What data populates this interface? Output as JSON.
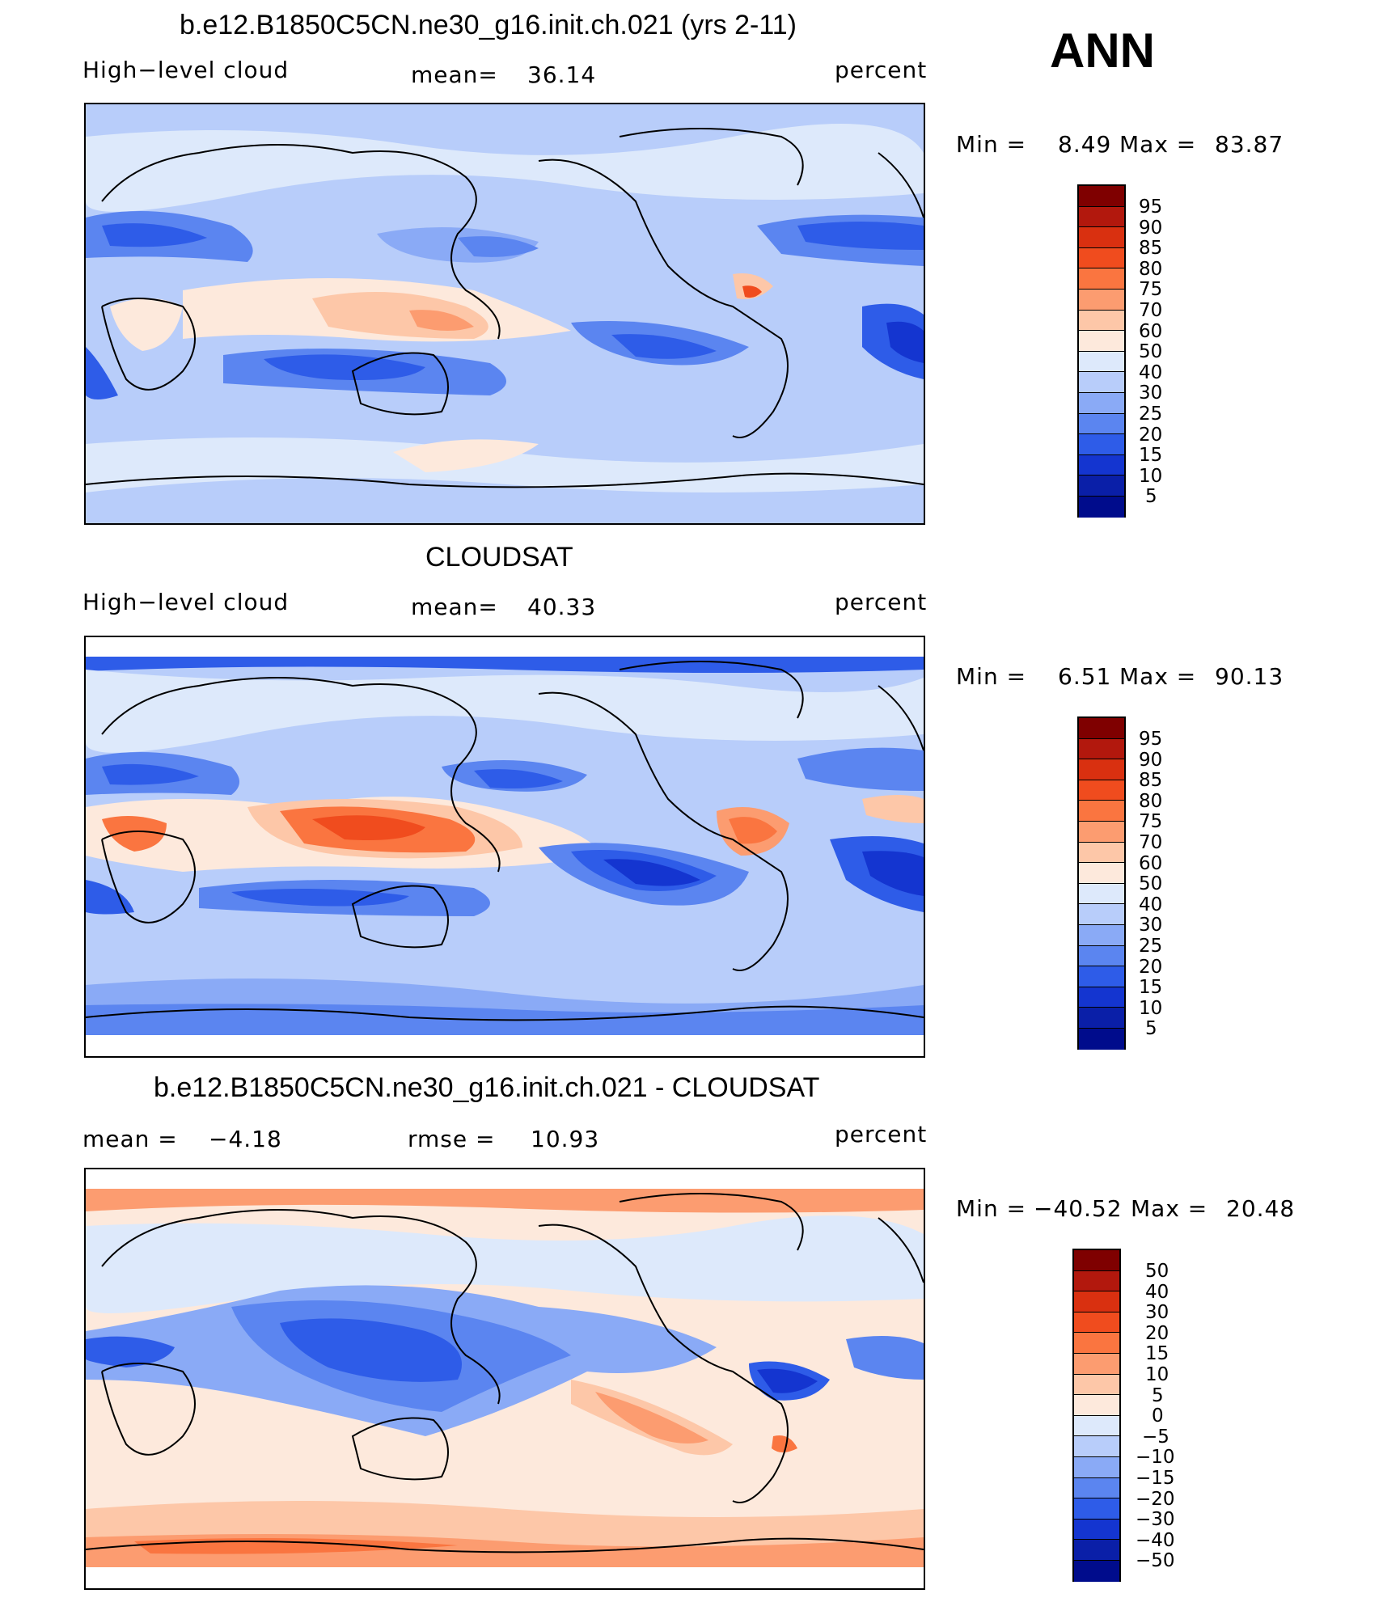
{
  "season": "ANN",
  "panels": [
    {
      "title": "b.e12.B1850C5CN.ne30_g16.init.ch.021 (yrs 2-11)",
      "left_label": "High−level cloud",
      "center_label": "mean=",
      "center_value": "36.14",
      "units": "percent",
      "min_label": "Min =",
      "min_value": "8.49",
      "max_label": "Max =",
      "max_value": "83.87",
      "colorbar_labels": [
        "95",
        "90",
        "85",
        "80",
        "75",
        "70",
        "60",
        "50",
        "40",
        "30",
        "25",
        "20",
        "15",
        "10",
        "5"
      ]
    },
    {
      "title": "CLOUDSAT",
      "left_label": "High−level cloud",
      "center_label": "mean=",
      "center_value": "40.33",
      "units": "percent",
      "min_label": "Min =",
      "min_value": "6.51",
      "max_label": "Max =",
      "max_value": "90.13",
      "colorbar_labels": [
        "95",
        "90",
        "85",
        "80",
        "75",
        "70",
        "60",
        "50",
        "40",
        "30",
        "25",
        "20",
        "15",
        "10",
        "5"
      ]
    },
    {
      "title": "b.e12.B1850C5CN.ne30_g16.init.ch.021 - CLOUDSAT",
      "left_label": "mean =",
      "left_value": "−4.18",
      "center_label": "rmse =",
      "center_value": "10.93",
      "units": "percent",
      "min_label": "Min =",
      "min_value": "−40.52",
      "max_label": "Max =",
      "max_value": "20.48",
      "colorbar_labels": [
        "50",
        "40",
        "30",
        "20",
        "15",
        "10",
        "5",
        "0",
        "−5",
        "−10",
        "−15",
        "−20",
        "−30",
        "−40",
        "−50"
      ]
    }
  ],
  "colors": {
    "seq_bar": [
      "#7f0000",
      "#b2180d",
      "#d93010",
      "#f04c1e",
      "#fa7540",
      "#fc9c70",
      "#fdc7a8",
      "#fde9dc",
      "#dde9fb",
      "#b8cdfa",
      "#8aaaf6",
      "#5b85f0",
      "#2e5ce8",
      "#1435d0",
      "#0a1fa8",
      "#000c8c"
    ],
    "diff_bar": [
      "#7f0000",
      "#b2180d",
      "#d93010",
      "#f04c1e",
      "#fa7540",
      "#fc9c70",
      "#fdc7a8",
      "#fde9dc",
      "#dde9fb",
      "#b8cdfa",
      "#8aaaf6",
      "#5b85f0",
      "#2e5ce8",
      "#1435d0",
      "#0a1fa8",
      "#000c8c"
    ]
  }
}
